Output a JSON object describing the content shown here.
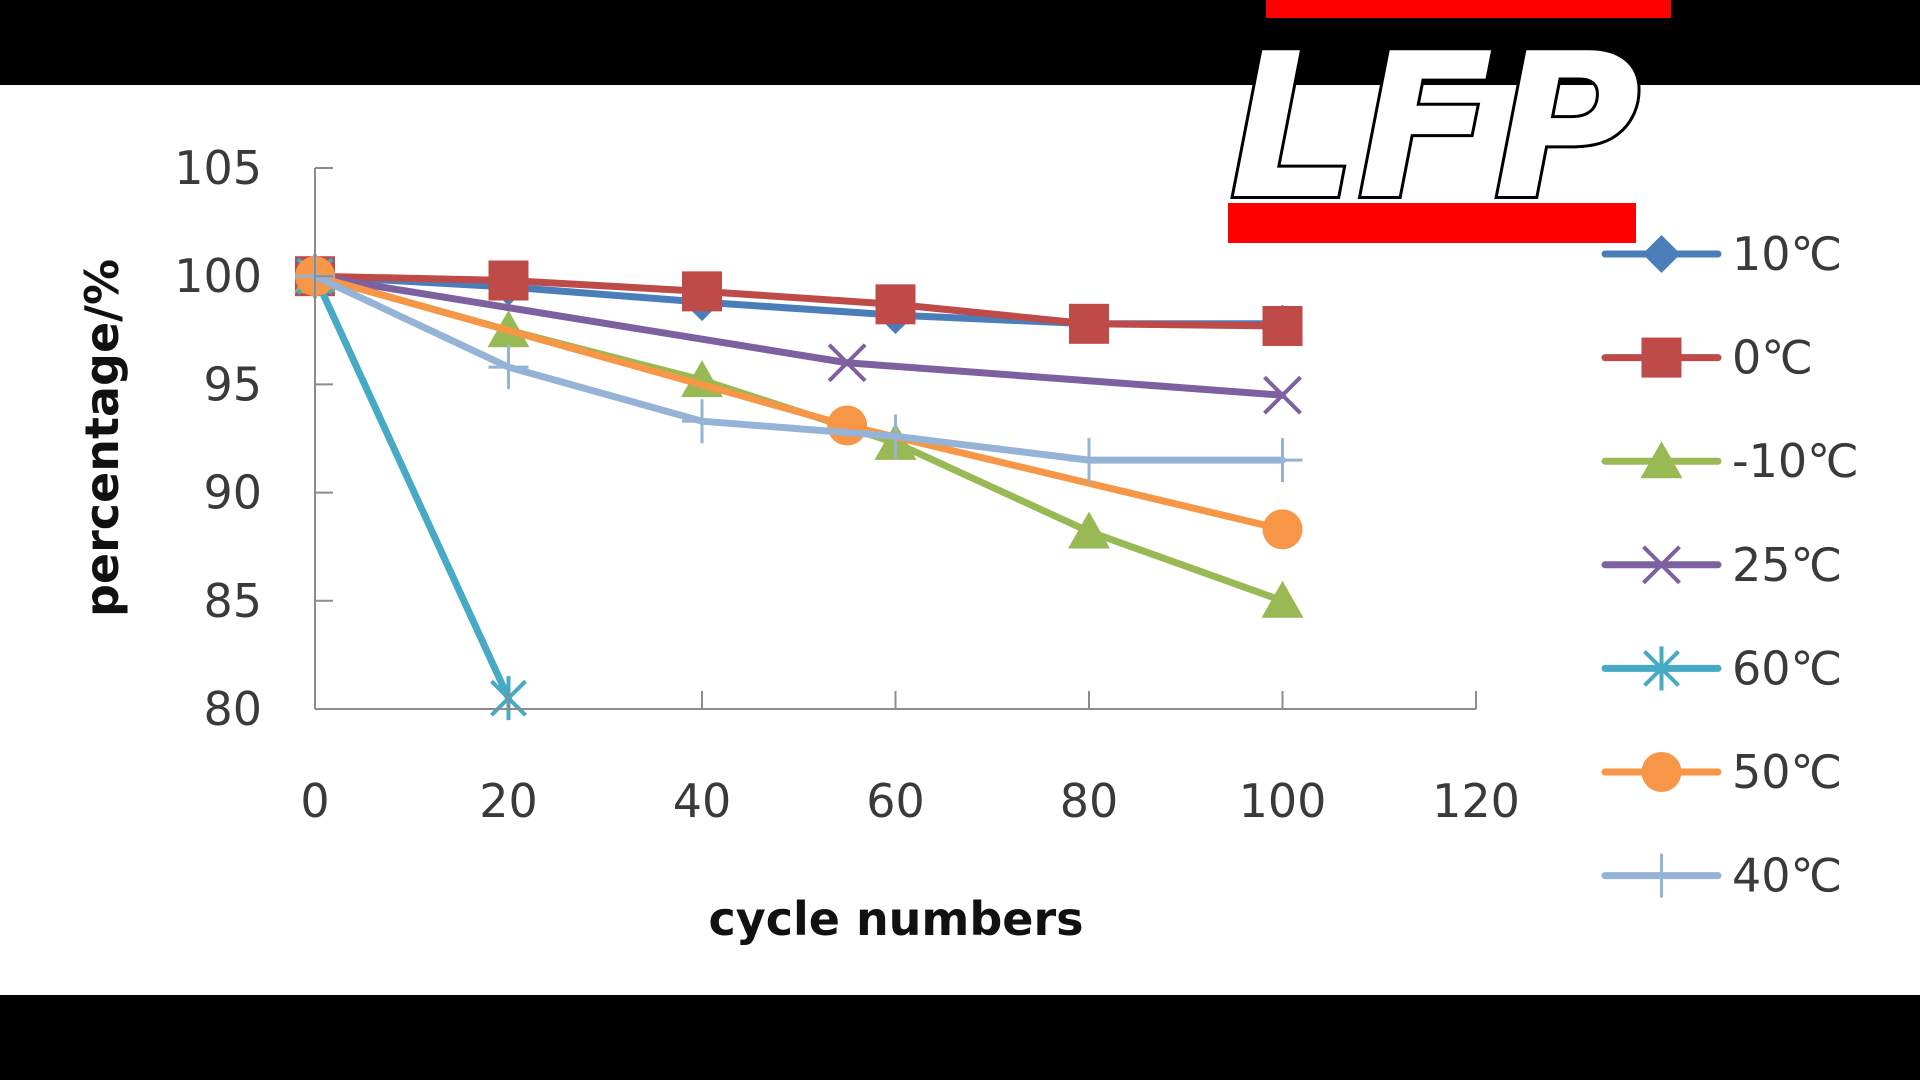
{
  "logo": {
    "text": "LFP",
    "bar_color": "#ff0000"
  },
  "chart_data": {
    "type": "line",
    "title": "",
    "xlabel": "cycle numbers",
    "ylabel": "percentage/%",
    "xlim": [
      0,
      120
    ],
    "ylim": [
      80,
      105
    ],
    "xticks": [
      0,
      20,
      40,
      60,
      80,
      100,
      120
    ],
    "yticks": [
      80,
      85,
      90,
      95,
      100,
      105
    ],
    "grid": false,
    "legend": "right",
    "series": [
      {
        "name": "10℃",
        "color": "#4a7ebb",
        "marker": "diamond",
        "x": [
          0,
          20,
          40,
          60,
          80,
          100
        ],
        "y": [
          100,
          99.5,
          98.8,
          98.2,
          97.8,
          97.8
        ]
      },
      {
        "name": "0℃",
        "color": "#be4b48",
        "marker": "square",
        "x": [
          0,
          20,
          40,
          60,
          80,
          100
        ],
        "y": [
          100,
          99.8,
          99.3,
          98.7,
          97.8,
          97.7
        ]
      },
      {
        "name": "-10℃",
        "color": "#98b954",
        "marker": "triangle",
        "x": [
          0,
          20,
          40,
          60,
          80,
          100
        ],
        "y": [
          100,
          97.5,
          95.2,
          92.3,
          88.2,
          85
        ]
      },
      {
        "name": "25℃",
        "color": "#7d60a0",
        "marker": "x",
        "x": [
          0,
          55,
          100
        ],
        "y": [
          100,
          96,
          94.5
        ]
      },
      {
        "name": "60℃",
        "color": "#46aac5",
        "marker": "star",
        "x": [
          0,
          20
        ],
        "y": [
          100,
          80.5
        ]
      },
      {
        "name": "50℃",
        "color": "#f79646",
        "marker": "circle",
        "x": [
          0,
          55,
          100
        ],
        "y": [
          100,
          93.1,
          88.3
        ]
      },
      {
        "name": "40℃",
        "color": "#95b3d7",
        "marker": "plus",
        "x": [
          0,
          20,
          40,
          60,
          80,
          100
        ],
        "y": [
          100,
          95.8,
          93.3,
          92.6,
          91.5,
          91.5
        ]
      }
    ]
  }
}
